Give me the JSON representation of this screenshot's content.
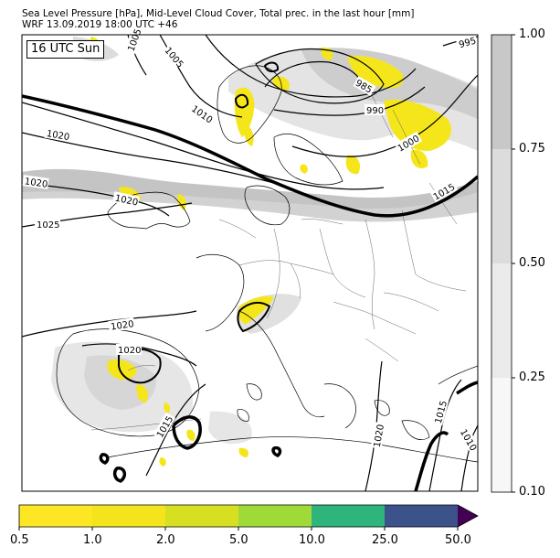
{
  "header": {
    "line1": "Sea Level Pressure [hPa], Mid-Level Cloud Cover, Total prec. in the last hour [mm]",
    "line2": "WRF 13.09.2019 18:00 UTC +46"
  },
  "time_label": "16 UTC Sun",
  "cloud_colorbar": {
    "ticks": [
      "0.10",
      "0.25",
      "0.50",
      "0.75",
      "1.00"
    ],
    "colors": [
      "#f7f7f7",
      "#ebebeb",
      "#dcdcdc",
      "#c8c8c8"
    ]
  },
  "precip_colorbar": {
    "ticks": [
      "0.5",
      "1.0",
      "2.0",
      "5.0",
      "10.0",
      "25.0",
      "50.0"
    ],
    "colors": [
      "#fde725",
      "#f3e41c",
      "#d7df23",
      "#a0da39",
      "#2fb47c",
      "#3b528b",
      "#440154"
    ]
  },
  "isobar_labels": [
    "1005",
    "1005",
    "995",
    "985",
    "990",
    "1010",
    "1000",
    "1020",
    "1020",
    "1020",
    "1015",
    "1025",
    "1020",
    "1020",
    "1015",
    "1020",
    "1015",
    "1010"
  ],
  "colors": {
    "precip": "#f5e61c",
    "cloud_light": "#e6e6e6",
    "cloud_dark": "#c8c8c8",
    "coast": "#000000",
    "border": "#555555"
  }
}
